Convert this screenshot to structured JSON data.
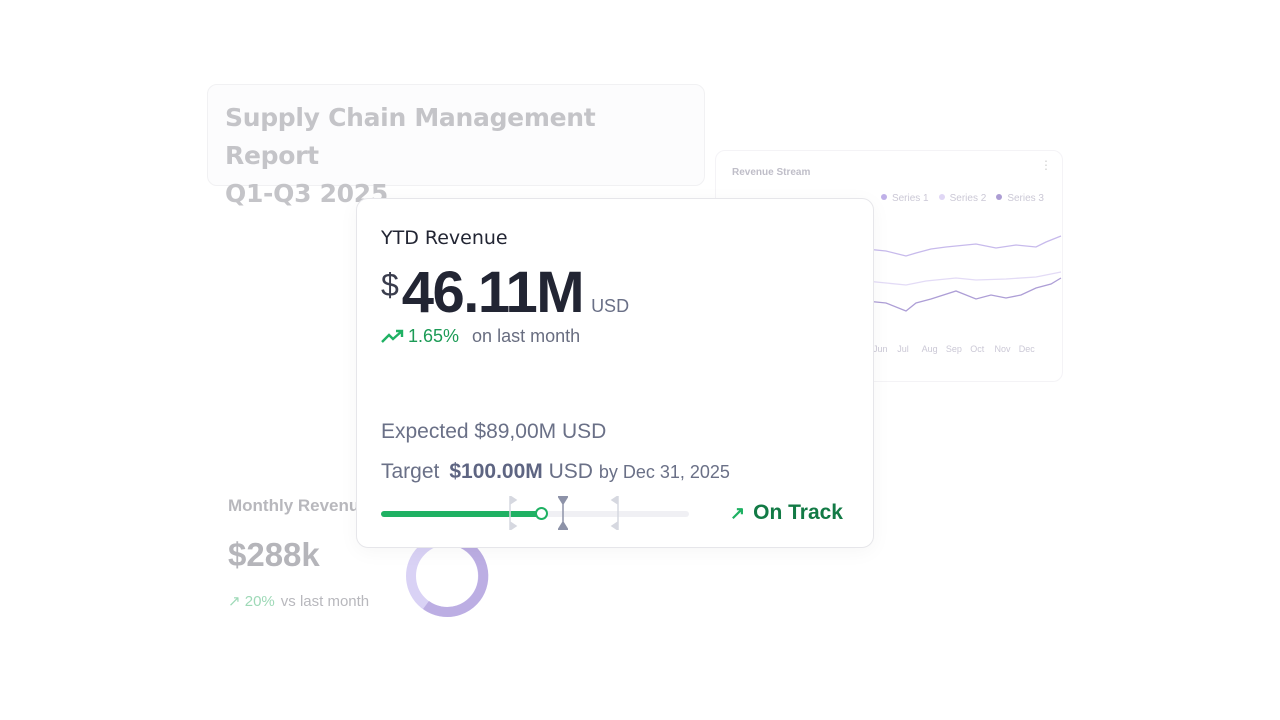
{
  "report": {
    "title_line1": "Supply Chain Management Report",
    "title_line2": "Q1-Q3 2025"
  },
  "revenue_stream": {
    "title": "Revenue Stream",
    "menu_icon": "kebab-icon",
    "legend": [
      {
        "name": "Series 1",
        "color": "#b9a8e6"
      },
      {
        "name": "Series 2",
        "color": "#ddd3f5"
      },
      {
        "name": "Series 3",
        "color": "#a493cf"
      }
    ],
    "months": [
      "Jun",
      "Jul",
      "Aug",
      "Sep",
      "Oct",
      "Nov",
      "Dec"
    ]
  },
  "monthly": {
    "label": "Monthly Revenue",
    "value": "$288k",
    "change": "20%",
    "change_label": "vs last month"
  },
  "ytd": {
    "title": "YTD Revenue",
    "currency_symbol": "$",
    "value": "46.11M",
    "unit": "USD",
    "change": "1.65%",
    "change_label": "on last month",
    "expected": "Expected $89,00M USD",
    "target_label": "Target",
    "target_value": "$100.00M",
    "target_unit": "USD",
    "target_by": "by Dec 31, 2025",
    "progress": 0.52,
    "markers": [
      0.43,
      0.59,
      0.76
    ],
    "status": "On Track",
    "accent": "#1fb163"
  }
}
